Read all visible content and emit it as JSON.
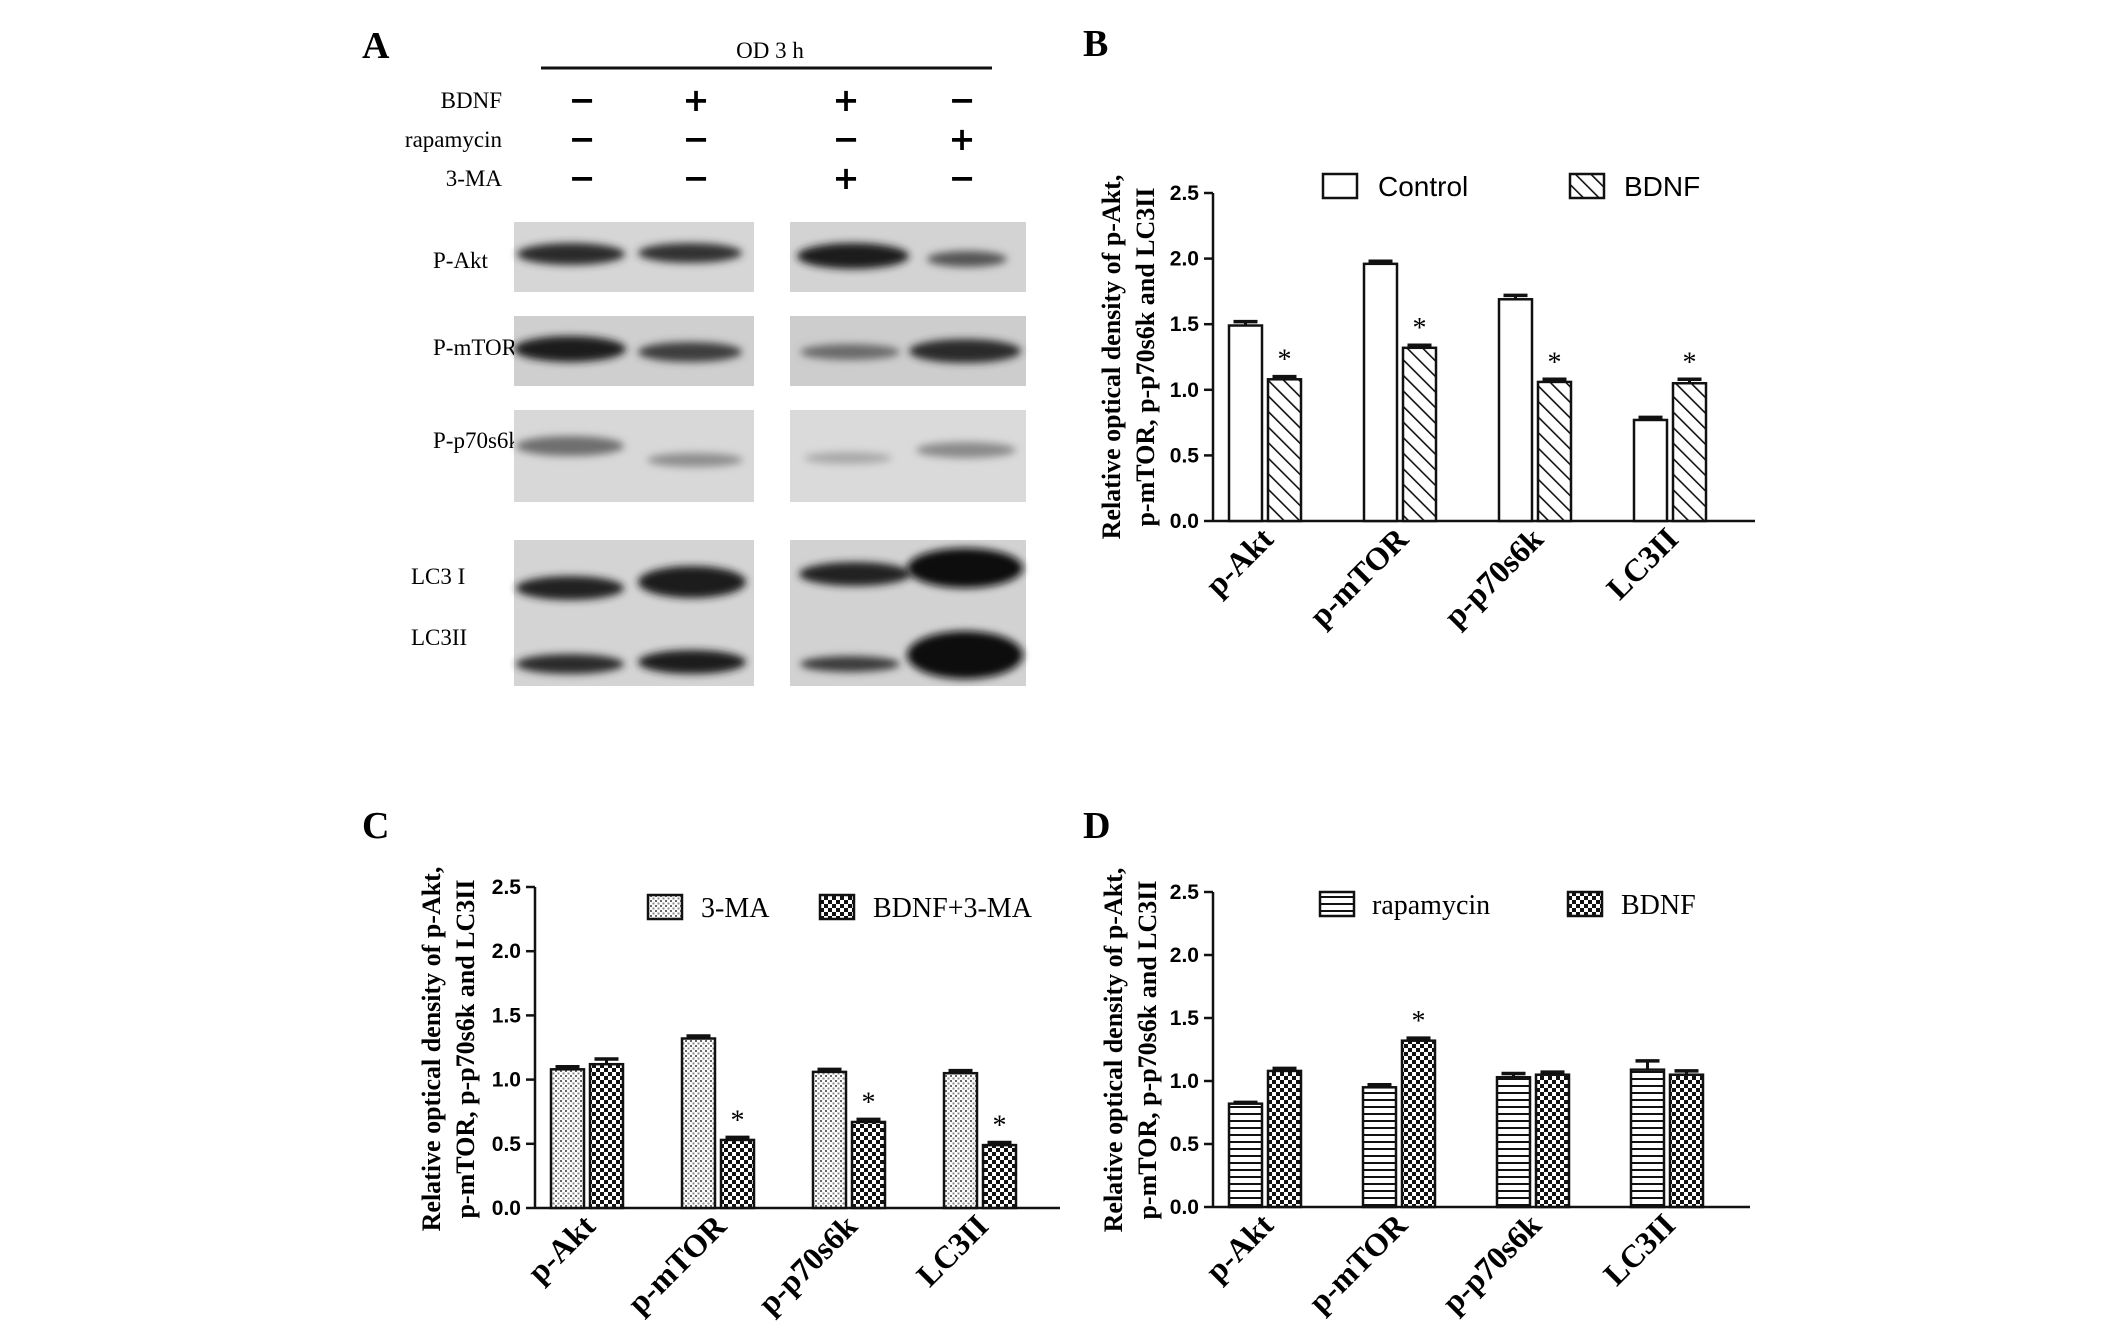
{
  "panel_a": {
    "letter": "A",
    "header": "OD 3 h",
    "treatments": [
      {
        "label": "BDNF",
        "signs": [
          "−",
          "+",
          "+",
          "−"
        ]
      },
      {
        "label": "rapamycin",
        "signs": [
          "−",
          "−",
          "−",
          "+"
        ]
      },
      {
        "label": "3-MA",
        "signs": [
          "−",
          "−",
          "+",
          "−"
        ]
      }
    ],
    "blot_labels": [
      "P-Akt",
      "P-mTOR",
      "P-p70s6k",
      "LC3 I",
      "LC3II"
    ]
  },
  "chart_data": [
    {
      "panel": "B",
      "type": "bar",
      "ylabel_lines": [
        "Relative optical density of p-Akt,",
        "p-mTOR, p-p70s6k and LC3II"
      ],
      "ylim": [
        0,
        2.5
      ],
      "yticks": [
        "0.0",
        "0.5",
        "1.0",
        "1.5",
        "2.0",
        "2.5"
      ],
      "categories": [
        "p-Akt",
        "p-mTOR",
        "p-p70s6k",
        "LC3II"
      ],
      "series": [
        {
          "name": "Control",
          "pattern": "white",
          "values": [
            1.49,
            1.96,
            1.69,
            0.77
          ],
          "errors": [
            0.03,
            0.02,
            0.03,
            0.02
          ]
        },
        {
          "name": "BDNF",
          "pattern": "diagonal",
          "values": [
            1.08,
            1.32,
            1.06,
            1.05
          ],
          "errors": [
            0.02,
            0.02,
            0.02,
            0.03
          ]
        }
      ],
      "significance": [
        null,
        "*",
        null,
        "*",
        null,
        "*",
        null,
        "*"
      ],
      "legend_position": "top"
    },
    {
      "panel": "C",
      "type": "bar",
      "ylabel_lines": [
        "Relative optical density of p-Akt,",
        "p-mTOR, p-p70s6k and LC3II"
      ],
      "ylim": [
        0,
        2.5
      ],
      "yticks": [
        "0.0",
        "0.5",
        "1.0",
        "1.5",
        "2.0",
        "2.5"
      ],
      "categories": [
        "p-Akt",
        "p-mTOR",
        "p-p70s6k",
        "LC3II"
      ],
      "series": [
        {
          "name": "3-MA",
          "pattern": "dots",
          "values": [
            1.08,
            1.32,
            1.06,
            1.05
          ],
          "errors": [
            0.02,
            0.02,
            0.02,
            0.02
          ]
        },
        {
          "name": "BDNF+3-MA",
          "pattern": "checker",
          "values": [
            1.12,
            0.53,
            0.67,
            0.49
          ],
          "errors": [
            0.04,
            0.02,
            0.02,
            0.02
          ]
        }
      ],
      "significance": [
        null,
        null,
        null,
        "*",
        null,
        "*",
        null,
        "*"
      ],
      "legend_position": "top"
    },
    {
      "panel": "D",
      "type": "bar",
      "ylabel_lines": [
        "Relative optical density of p-Akt,",
        "p-mTOR, p-p70s6k and LC3II"
      ],
      "ylim": [
        0,
        2.5
      ],
      "yticks": [
        "0.0",
        "0.5",
        "1.0",
        "1.5",
        "2.0",
        "2.5"
      ],
      "categories": [
        "p-Akt",
        "p-mTOR",
        "p-p70s6k",
        "LC3II"
      ],
      "series": [
        {
          "name": "rapamycin",
          "pattern": "horizontal",
          "values": [
            0.82,
            0.95,
            1.03,
            1.09
          ],
          "errors": [
            0.01,
            0.02,
            0.03,
            0.07
          ]
        },
        {
          "name": "BDNF",
          "pattern": "checker",
          "values": [
            1.08,
            1.32,
            1.05,
            1.05
          ],
          "errors": [
            0.02,
            0.02,
            0.02,
            0.03
          ]
        }
      ],
      "significance": [
        null,
        null,
        null,
        "*",
        null,
        null,
        null,
        null
      ],
      "legend_position": "top"
    }
  ]
}
